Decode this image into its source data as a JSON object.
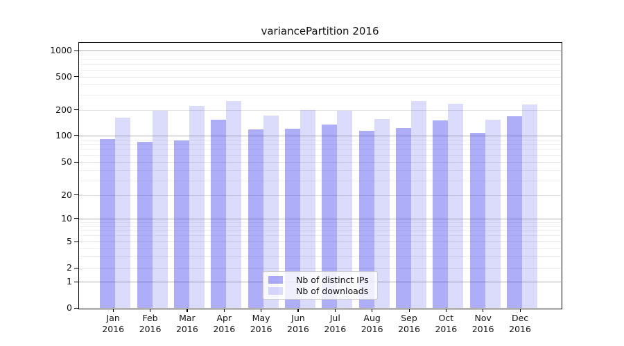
{
  "figure": {
    "title": "variancePartition 2016"
  },
  "chart_data": {
    "type": "bar",
    "title": "variancePartition 2016",
    "categories": [
      "Jan",
      "Feb",
      "Mar",
      "Apr",
      "May",
      "Jun",
      "Jul",
      "Aug",
      "Sep",
      "Oct",
      "Nov",
      "Dec"
    ],
    "category_year": "2016",
    "series": [
      {
        "name": "Nb of distinct IPs",
        "values": [
          91,
          85,
          88,
          154,
          118,
          121,
          133,
          114,
          123,
          151,
          108,
          169
        ]
      },
      {
        "name": "Nb of downloads",
        "values": [
          161,
          194,
          222,
          254,
          170,
          198,
          194,
          155,
          254,
          238,
          154,
          230
        ]
      }
    ],
    "xlabel": "",
    "ylabel": "",
    "yscale": "symlog",
    "yticks": [
      0,
      1,
      2,
      5,
      10,
      20,
      50,
      100,
      200,
      500,
      1000
    ],
    "ylim": [
      0,
      1270
    ],
    "grid": "on",
    "legend_position": "lower center"
  },
  "colors": {
    "ips_bar": "rgba(30,30,235,0.36)",
    "downloads_bar": "rgba(30,30,235,0.16)",
    "grid_major_dark": "#ababab",
    "grid_major_light": "#e2e2e2",
    "grid_minor": "#efefef",
    "spine": "#000000",
    "background": "#ffffff"
  }
}
